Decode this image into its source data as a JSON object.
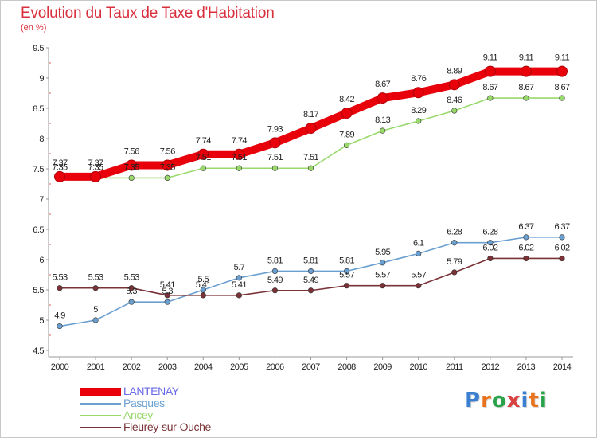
{
  "title": "Evolution du Taux de Taxe d'Habitation",
  "unit_label": "(en %)",
  "brand": "Proxiti",
  "chart_data": {
    "type": "line",
    "title": "Evolution du Taux de Taxe d'Habitation",
    "ylabel": "(en %)",
    "xlabel": "",
    "x": [
      "2000",
      "2001",
      "2002",
      "2003",
      "2004",
      "2005",
      "2006",
      "2007",
      "2008",
      "2009",
      "2010",
      "2011",
      "2012",
      "2013",
      "2014"
    ],
    "ylim": [
      4.5,
      9.5
    ],
    "yticks": [
      "4.5",
      "5",
      "5.5",
      "6",
      "6.5",
      "7",
      "7.5",
      "8",
      "8.5",
      "9",
      "9.5"
    ],
    "grid": false,
    "legend_position": "bottom-left",
    "series": [
      {
        "name": "LANTENAY",
        "color": "#e8000b",
        "values": [
          7.37,
          7.37,
          7.56,
          7.56,
          7.74,
          7.74,
          7.93,
          8.17,
          8.42,
          8.67,
          8.76,
          8.89,
          9.11,
          9.11,
          9.11
        ],
        "labels": [
          "7.37",
          "7.37",
          "7.56",
          "7.56",
          "7.74",
          "7.74",
          "7.93",
          "8.17",
          "8.42",
          "8.67",
          "8.76",
          "8.89",
          "9.11",
          "9.11",
          "9.11"
        ]
      },
      {
        "name": "Pasques",
        "color": "#6a9fd0",
        "values": [
          4.9,
          5.0,
          5.3,
          5.3,
          5.5,
          5.7,
          5.81,
          5.81,
          5.81,
          5.95,
          6.1,
          6.28,
          6.28,
          6.37,
          6.37
        ],
        "labels": [
          "4.9",
          "5",
          "5.3",
          "5.3",
          "5.5",
          "5.7",
          "5.81",
          "5.81",
          "5.81",
          "5.95",
          "6.1",
          "6.28",
          "6.28",
          "6.37",
          "6.37"
        ]
      },
      {
        "name": "Ancey",
        "color": "#99d96b",
        "values": [
          7.35,
          7.35,
          7.35,
          7.35,
          7.51,
          7.51,
          7.51,
          7.51,
          7.89,
          8.13,
          8.29,
          8.46,
          8.67,
          8.67,
          8.67
        ],
        "labels": [
          "7.35",
          "7.35",
          "7.35",
          "7.35",
          "7.51",
          "7.51",
          "7.51",
          "7.51",
          "7.89",
          "8.13",
          "8.29",
          "8.46",
          "8.67",
          "8.67",
          "8.67"
        ]
      },
      {
        "name": "Fleurey-sur-Ouche",
        "color": "#7a3236",
        "values": [
          5.53,
          5.53,
          5.53,
          5.41,
          5.41,
          5.41,
          5.49,
          5.49,
          5.57,
          5.57,
          5.57,
          5.79,
          6.02,
          6.02,
          6.02
        ],
        "labels": [
          "5.53",
          "5.53",
          "5.53",
          "5.41",
          "5.41",
          "5.41",
          "5.49",
          "5.49",
          "5.57",
          "5.57",
          "5.57",
          "5.79",
          "6.02",
          "6.02",
          "6.02"
        ]
      }
    ]
  }
}
